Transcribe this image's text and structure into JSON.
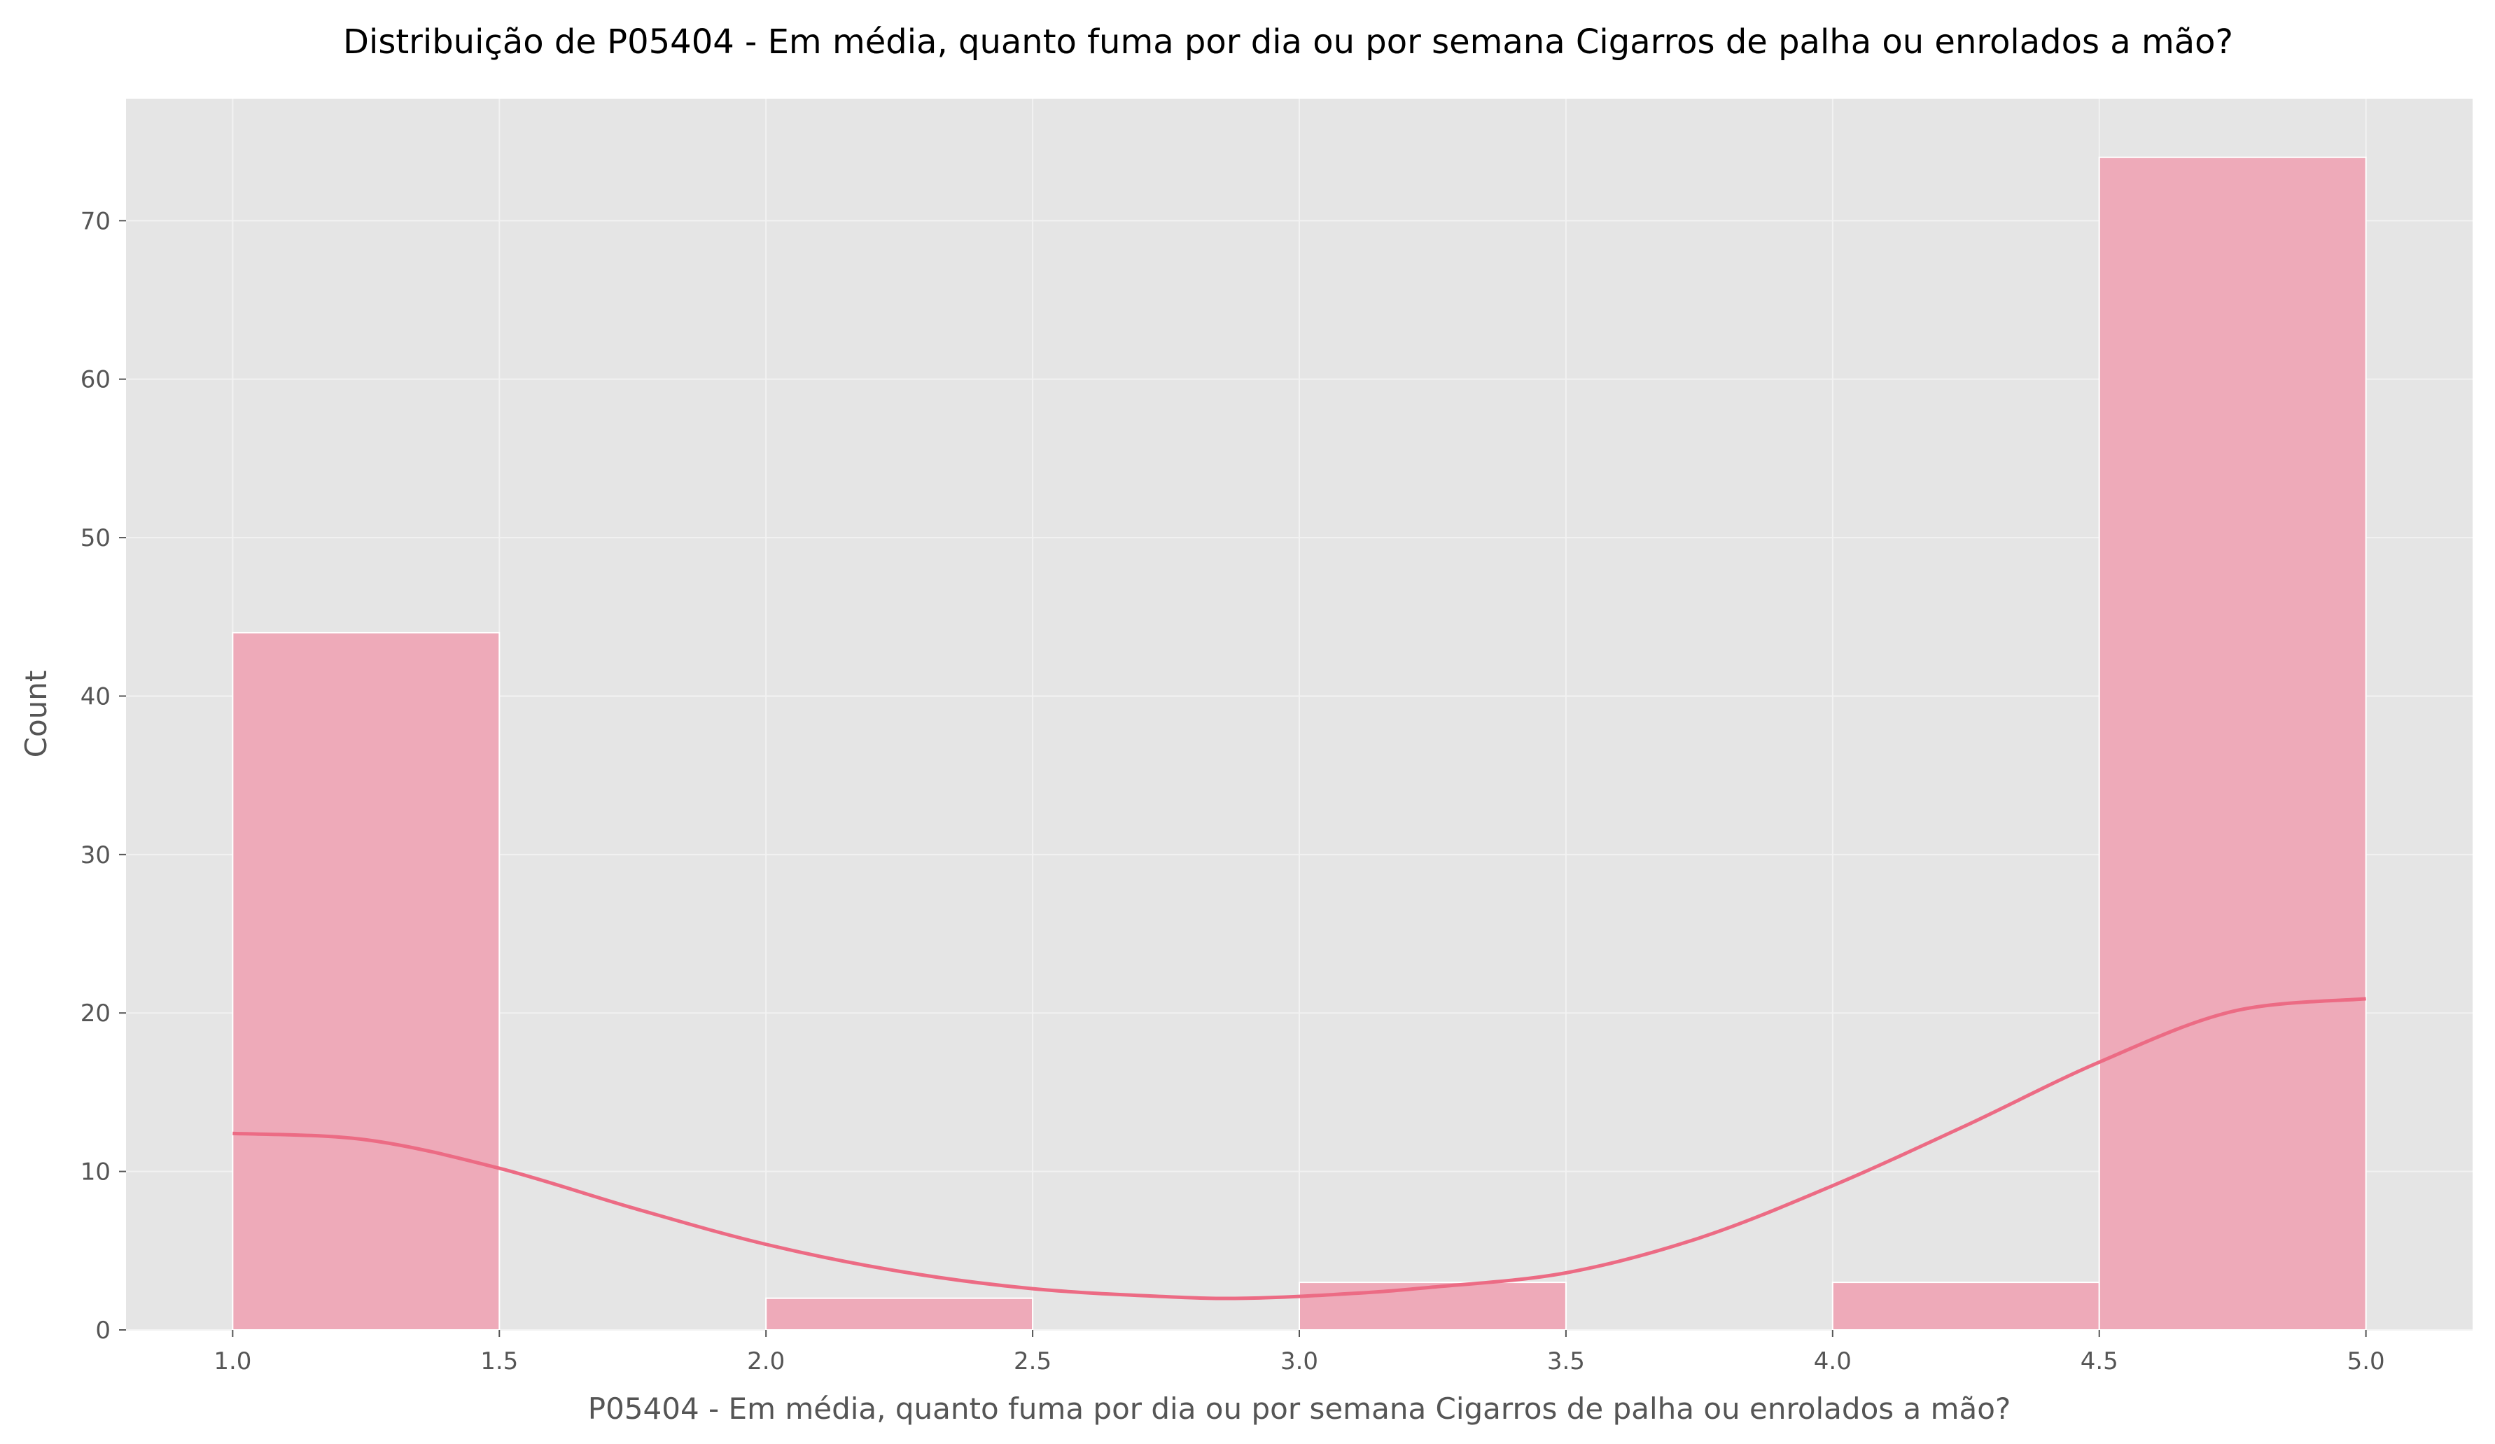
{
  "chart_data": {
    "type": "bar",
    "title": "Distribuição de P05404 - Em média, quanto fuma por dia ou por semana Cigarros de palha ou enrolados a mão?",
    "xlabel": "P05404 - Em média, quanto fuma por dia ou por semana Cigarros de palha ou enrolados a mão?",
    "ylabel": "Count",
    "xlim": [
      0.8,
      5.2
    ],
    "ylim": [
      0,
      77.7
    ],
    "xticks": [
      "1.0",
      "1.5",
      "2.0",
      "2.5",
      "3.0",
      "3.5",
      "4.0",
      "4.5",
      "5.0"
    ],
    "yticks": [
      "0",
      "10",
      "20",
      "30",
      "40",
      "50",
      "60",
      "70"
    ],
    "grid": true,
    "bins": [
      {
        "x0": 1.0,
        "x1": 1.5,
        "count": 44
      },
      {
        "x0": 1.5,
        "x1": 2.0,
        "count": 0
      },
      {
        "x0": 2.0,
        "x1": 2.5,
        "count": 2
      },
      {
        "x0": 2.5,
        "x1": 3.0,
        "count": 0
      },
      {
        "x0": 3.0,
        "x1": 3.5,
        "count": 3
      },
      {
        "x0": 3.5,
        "x1": 4.0,
        "count": 0
      },
      {
        "x0": 4.0,
        "x1": 4.5,
        "count": 3
      },
      {
        "x0": 4.5,
        "x1": 5.0,
        "count": 74
      }
    ],
    "kde": {
      "x": [
        1.0,
        1.25,
        1.5,
        1.75,
        2.0,
        2.25,
        2.5,
        2.75,
        2.9,
        3.1,
        3.25,
        3.5,
        3.75,
        4.0,
        4.25,
        4.5,
        4.75,
        5.0
      ],
      "y": [
        12.4,
        12.0,
        10.2,
        7.7,
        5.4,
        3.7,
        2.6,
        2.1,
        2.0,
        2.3,
        2.7,
        3.6,
        5.8,
        9.1,
        12.9,
        16.9,
        20.1,
        20.9
      ]
    },
    "colors": {
      "bar_fill": "#eeaab9",
      "bar_edge": "#ffffff",
      "kde_line": "#ec6b84",
      "plot_bg": "#e5e5e5",
      "grid": "#f2f2f2"
    }
  }
}
